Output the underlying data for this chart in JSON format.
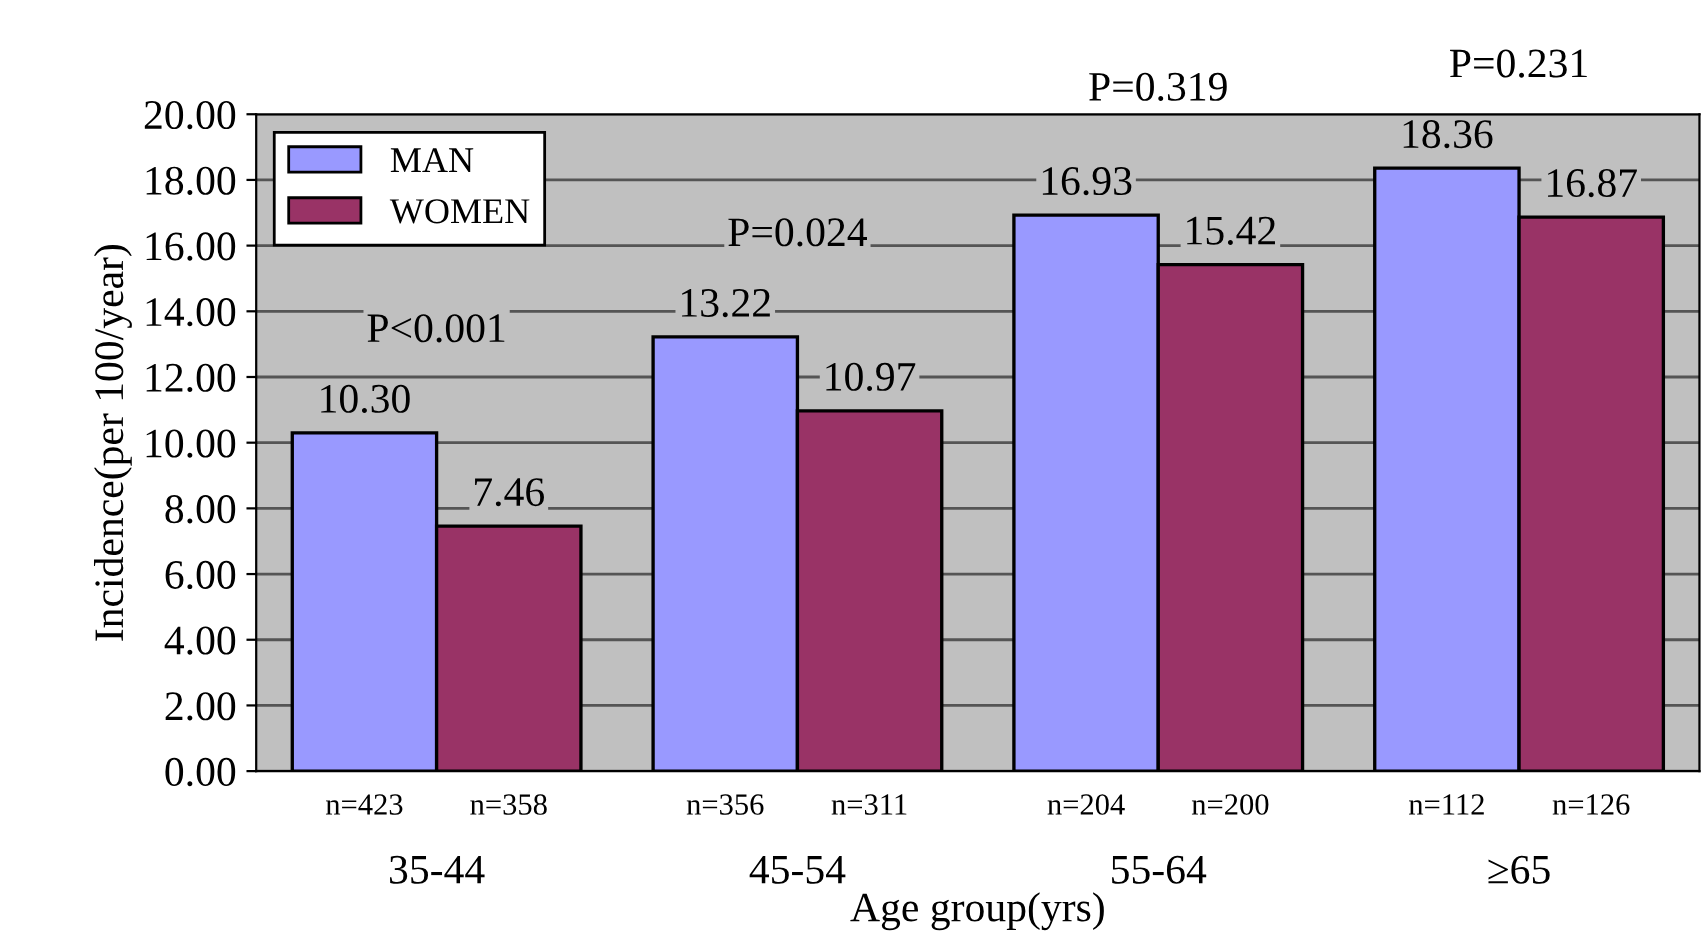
{
  "chart_data": {
    "type": "bar",
    "xlabel": "Age group(yrs)",
    "ylabel": "Incidence(per 100/year)",
    "categories": [
      "35-44",
      "45-54",
      "55-64",
      "≥65"
    ],
    "series": [
      {
        "name": "MAN",
        "color": "#9999ff",
        "values": [
          10.3,
          13.22,
          16.93,
          18.36
        ],
        "value_labels": [
          "10.30",
          "13.22",
          "16.93",
          "18.36"
        ]
      },
      {
        "name": "WOMEN",
        "color": "#993366",
        "values": [
          7.46,
          10.97,
          15.42,
          16.87
        ],
        "value_labels": [
          "7.46",
          "10.97",
          "15.42",
          "16.87"
        ]
      }
    ],
    "ylim": [
      0,
      20
    ],
    "yticks": [
      {
        "value": 0,
        "label": "0.00"
      },
      {
        "value": 2,
        "label": "2.00"
      },
      {
        "value": 4,
        "label": "4.00"
      },
      {
        "value": 6,
        "label": "6.00"
      },
      {
        "value": 8,
        "label": "8.00"
      },
      {
        "value": 10,
        "label": "10.00"
      },
      {
        "value": 12,
        "label": "12.00"
      },
      {
        "value": 14,
        "label": "14.00"
      },
      {
        "value": 16,
        "label": "16.00"
      },
      {
        "value": 18,
        "label": "18.00"
      },
      {
        "value": 20,
        "label": "20.00"
      }
    ],
    "annotations": [
      "P<0.001",
      "P=0.024",
      "P=0.319",
      "P=0.231",
      "n=423",
      "n=358",
      "n=356",
      "n=311",
      "n=204",
      "n=200",
      "n=112",
      "n=126"
    ],
    "grid": "y",
    "legend": "top left"
  }
}
